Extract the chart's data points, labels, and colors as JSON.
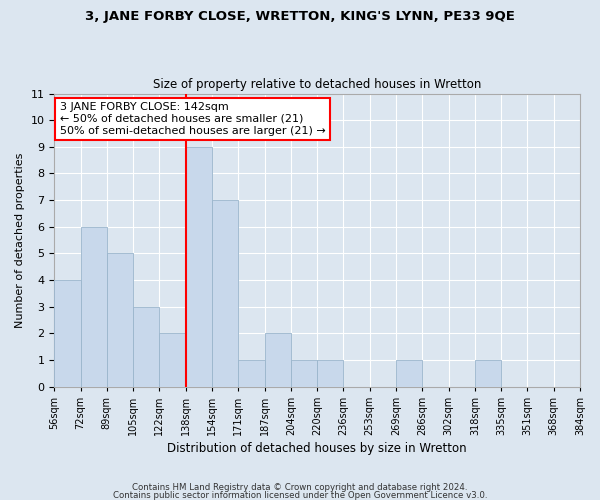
{
  "title": "3, JANE FORBY CLOSE, WRETTON, KING'S LYNN, PE33 9QE",
  "subtitle": "Size of property relative to detached houses in Wretton",
  "xlabel": "Distribution of detached houses by size in Wretton",
  "ylabel": "Number of detached properties",
  "bar_color": "#c8d8eb",
  "bar_edgecolor": "#9ab5cc",
  "bar_heights": [
    4,
    6,
    5,
    3,
    2,
    9,
    7,
    1,
    2,
    1,
    1,
    0,
    0,
    1,
    0,
    0,
    1,
    0,
    0,
    0
  ],
  "x_labels": [
    "56sqm",
    "72sqm",
    "89sqm",
    "105sqm",
    "122sqm",
    "138sqm",
    "154sqm",
    "171sqm",
    "187sqm",
    "204sqm",
    "220sqm",
    "236sqm",
    "253sqm",
    "269sqm",
    "286sqm",
    "302sqm",
    "318sqm",
    "335sqm",
    "351sqm",
    "368sqm",
    "384sqm"
  ],
  "ylim": [
    0,
    11
  ],
  "yticks": [
    0,
    1,
    2,
    3,
    4,
    5,
    6,
    7,
    8,
    9,
    10,
    11
  ],
  "red_line_index": 5,
  "annotation_title": "3 JANE FORBY CLOSE: 142sqm",
  "annotation_line1": "← 50% of detached houses are smaller (21)",
  "annotation_line2": "50% of semi-detached houses are larger (21) →",
  "footer1": "Contains HM Land Registry data © Crown copyright and database right 2024.",
  "footer2": "Contains public sector information licensed under the Open Government Licence v3.0.",
  "grid_color": "#ffffff",
  "background_color": "#dce6f0"
}
